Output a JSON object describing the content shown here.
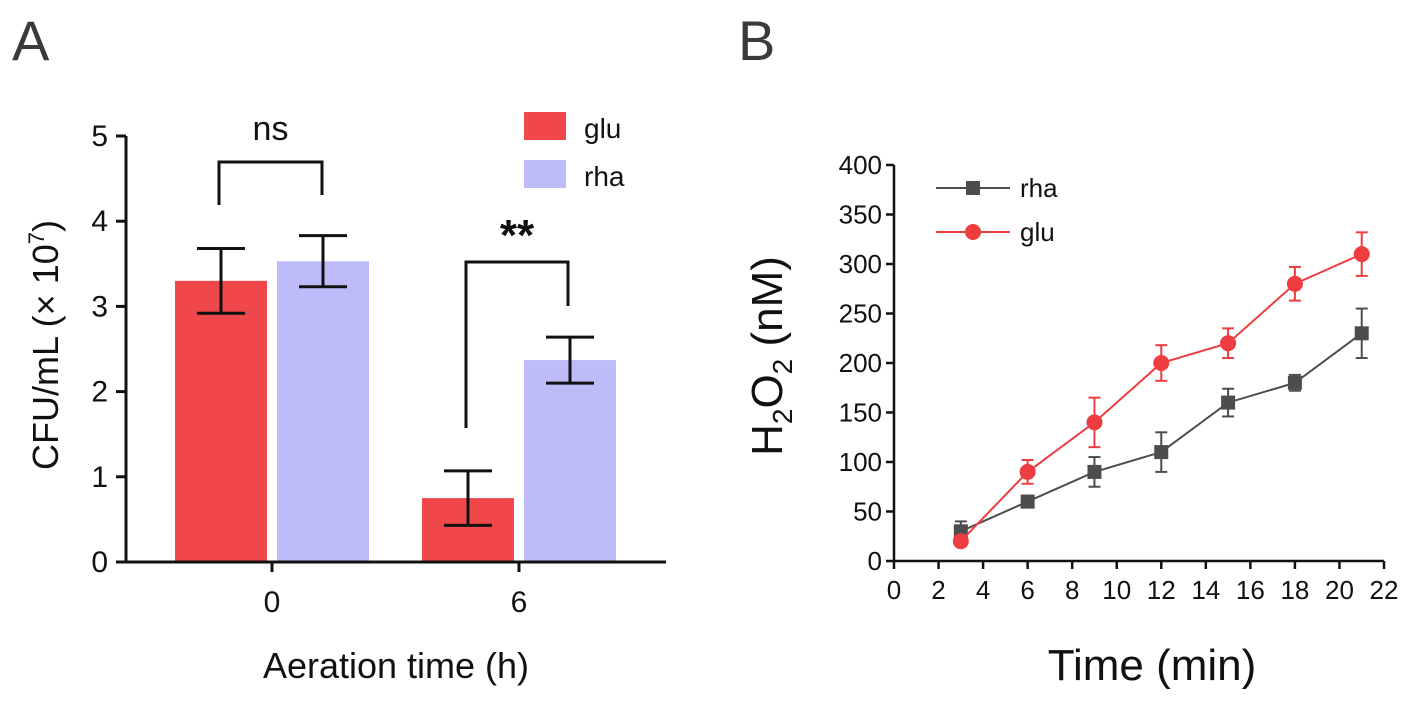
{
  "panels": {
    "A": {
      "letter": "A"
    },
    "B": {
      "letter": "B"
    }
  },
  "chart_data": [
    {
      "panel": "A",
      "type": "bar",
      "title": "",
      "xlabel": "Aeration time (h)",
      "ylabel_main": "CFU/mL (",
      "ylabel_times": "×",
      "ylabel_base": "10",
      "ylabel_exp": "7",
      "ylabel_close": ")",
      "categories": [
        "0",
        "6"
      ],
      "ylim": [
        0,
        5
      ],
      "yticks": [
        "0",
        "1",
        "2",
        "3",
        "4",
        "5"
      ],
      "series": [
        {
          "name": "glu",
          "color": "#f0474a",
          "values": [
            3.3,
            0.75
          ],
          "errors": [
            0.38,
            0.32
          ]
        },
        {
          "name": "rha",
          "color": "#bdbcf8",
          "values": [
            3.53,
            2.37
          ],
          "errors": [
            0.3,
            0.27
          ]
        }
      ],
      "annotations": [
        {
          "category": "0",
          "text": "ns"
        },
        {
          "category": "6",
          "text": "**"
        }
      ],
      "legend_position": "top-right"
    },
    {
      "panel": "B",
      "type": "line",
      "title": "",
      "xlabel": "Time (min)",
      "ylabel_h": "H",
      "ylabel_sub1": "2",
      "ylabel_o": "O",
      "ylabel_sub2": "2",
      "ylabel_unit": " (nM)",
      "xlim": [
        0,
        22
      ],
      "ylim": [
        0,
        400
      ],
      "xticks": [
        "0",
        "2",
        "4",
        "6",
        "8",
        "10",
        "12",
        "14",
        "16",
        "18",
        "20",
        "22"
      ],
      "yticks": [
        "0",
        "50",
        "100",
        "150",
        "200",
        "250",
        "300",
        "350",
        "400"
      ],
      "x": [
        3,
        6,
        9,
        12,
        15,
        18,
        21
      ],
      "series": [
        {
          "name": "rha",
          "color": "#4d4d4d",
          "marker": "square",
          "values": [
            30,
            60,
            90,
            110,
            160,
            180,
            230
          ],
          "errors": [
            10,
            6,
            15,
            20,
            14,
            8,
            25
          ]
        },
        {
          "name": "glu",
          "color": "#ee3d40",
          "marker": "circle",
          "values": [
            20,
            90,
            140,
            200,
            220,
            280,
            310
          ],
          "errors": [
            5,
            12,
            25,
            18,
            15,
            17,
            22
          ]
        }
      ],
      "legend_position": "top-left"
    }
  ]
}
